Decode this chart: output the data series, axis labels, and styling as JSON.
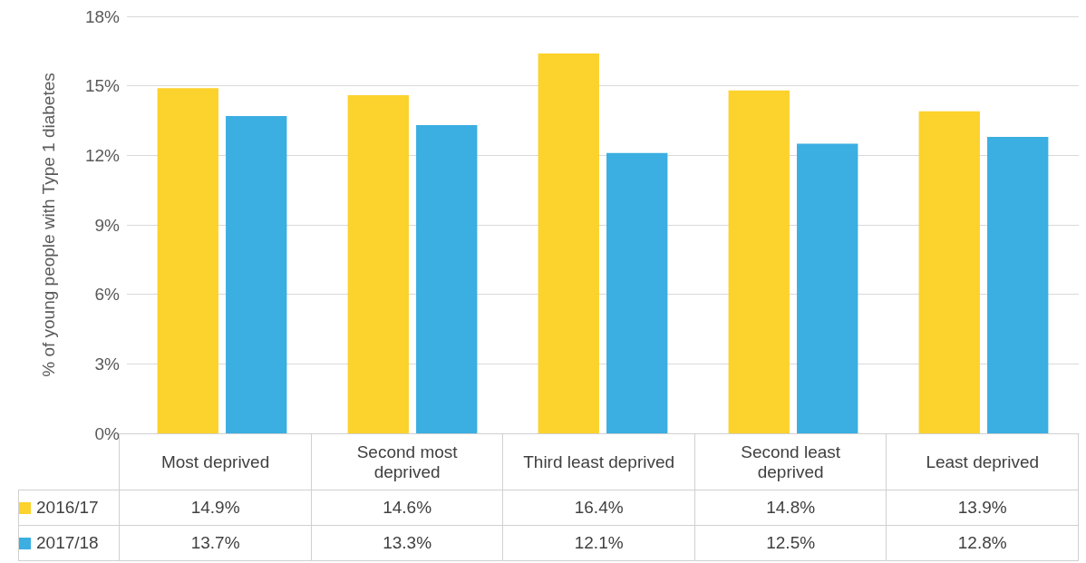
{
  "chart_data": {
    "type": "bar",
    "ylabel": "% of young people with Type 1 diabetes",
    "categories": [
      "Most deprived",
      "Second most deprived",
      "Third least deprived",
      "Second least deprived",
      "Least deprived"
    ],
    "series": [
      {
        "name": "2016/17",
        "color": "#fcd22c",
        "values": [
          14.9,
          14.6,
          16.4,
          14.8,
          13.9
        ],
        "value_labels": [
          "14.9%",
          "14.6%",
          "16.4%",
          "14.8%",
          "13.9%"
        ]
      },
      {
        "name": "2017/18",
        "color": "#3baee2",
        "values": [
          13.7,
          13.3,
          12.1,
          12.5,
          12.8
        ],
        "value_labels": [
          "13.7%",
          "13.3%",
          "12.1%",
          "12.5%",
          "12.8%"
        ]
      }
    ],
    "ylim": [
      0,
      18
    ],
    "yticks": [
      {
        "value": 0,
        "label": "0%"
      },
      {
        "value": 3,
        "label": "3%"
      },
      {
        "value": 6,
        "label": "6%"
      },
      {
        "value": 9,
        "label": "9%"
      },
      {
        "value": 12,
        "label": "12%"
      },
      {
        "value": 15,
        "label": "15%"
      },
      {
        "value": 18,
        "label": "18%"
      }
    ],
    "grid": "y",
    "legend": "bottom"
  }
}
